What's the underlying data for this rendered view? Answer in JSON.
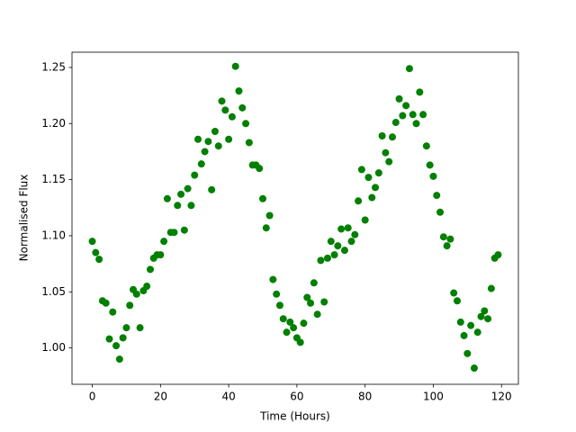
{
  "chart_data": {
    "type": "scatter",
    "xlabel": "Time (Hours)",
    "ylabel": "Normalised Flux",
    "color": "#008000",
    "grid": false,
    "x": [
      0,
      1,
      2,
      3,
      4,
      5,
      6,
      7,
      8,
      9,
      10,
      11,
      12,
      13,
      14,
      15,
      16,
      17,
      18,
      19,
      20,
      21,
      22,
      23,
      24,
      25,
      26,
      27,
      28,
      29,
      30,
      31,
      32,
      33,
      34,
      35,
      36,
      37,
      38,
      39,
      40,
      41,
      42,
      43,
      44,
      45,
      46,
      47,
      48,
      49,
      50,
      51,
      52,
      53,
      54,
      55,
      56,
      57,
      58,
      59,
      60,
      61,
      62,
      63,
      64,
      65,
      66,
      67,
      68,
      69,
      70,
      71,
      72,
      73,
      74,
      75,
      76,
      77,
      78,
      79,
      80,
      81,
      82,
      83,
      84,
      85,
      86,
      87,
      88,
      89,
      90,
      91,
      92,
      93,
      94,
      95,
      96,
      97,
      98,
      99,
      100,
      101,
      102,
      103,
      104,
      105,
      106,
      107,
      108,
      109,
      110,
      111,
      112,
      113,
      114,
      115,
      116,
      117,
      118,
      119
    ],
    "values": [
      1.095,
      1.085,
      1.079,
      1.042,
      1.04,
      1.008,
      1.032,
      1.002,
      0.99,
      1.009,
      1.018,
      1.038,
      1.052,
      1.048,
      1.018,
      1.051,
      1.055,
      1.07,
      1.08,
      1.083,
      1.083,
      1.095,
      1.133,
      1.103,
      1.103,
      1.127,
      1.137,
      1.105,
      1.142,
      1.127,
      1.154,
      1.186,
      1.164,
      1.175,
      1.184,
      1.141,
      1.193,
      1.18,
      1.22,
      1.212,
      1.186,
      1.206,
      1.251,
      1.229,
      1.214,
      1.2,
      1.183,
      1.163,
      1.163,
      1.16,
      1.133,
      1.107,
      1.118,
      1.061,
      1.048,
      1.038,
      1.026,
      1.014,
      1.023,
      1.018,
      1.009,
      1.005,
      1.022,
      1.045,
      1.04,
      1.058,
      1.03,
      1.078,
      1.041,
      1.08,
      1.095,
      1.083,
      1.091,
      1.106,
      1.087,
      1.107,
      1.095,
      1.101,
      1.131,
      1.159,
      1.114,
      1.152,
      1.134,
      1.143,
      1.156,
      1.189,
      1.174,
      1.166,
      1.188,
      1.201,
      1.222,
      1.207,
      1.216,
      1.249,
      1.208,
      1.2,
      1.228,
      1.208,
      1.18,
      1.163,
      1.153,
      1.136,
      1.121,
      1.099,
      1.091,
      1.097,
      1.049,
      1.042,
      1.023,
      1.011,
      0.995,
      1.02,
      0.982,
      1.014,
      1.028,
      1.033,
      1.026,
      1.053,
      1.08,
      1.083
    ],
    "xlim": [
      -5.95,
      124.95
    ],
    "xticks": [
      0,
      20,
      40,
      60,
      80,
      100,
      120
    ],
    "ylim": [
      0.9676,
      1.2636
    ],
    "yticks": [
      {
        "value": 1.0,
        "label": "1.00"
      },
      1.05,
      {
        "value": 1.1,
        "label": "1.10"
      },
      1.15,
      {
        "value": 1.2,
        "label": "1.20"
      },
      1.25
    ]
  }
}
